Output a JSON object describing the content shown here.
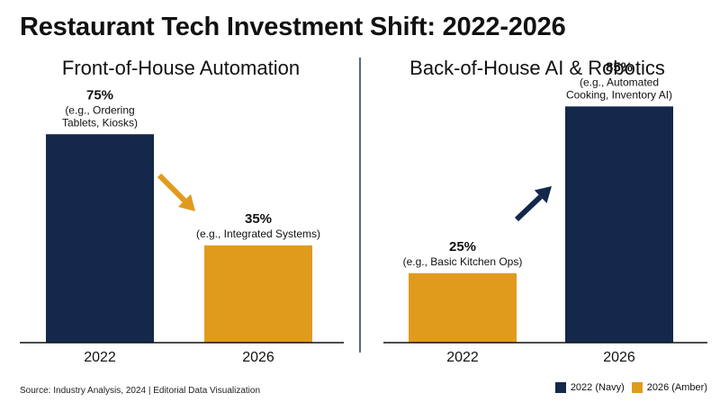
{
  "title": "Restaurant Tech Investment Shift: 2022-2026",
  "source": "Source: Industry Analysis, 2024 | Editorial Data Visualization",
  "colors": {
    "navy": "#14284b",
    "amber": "#e09b1d",
    "divider": "#1f3557"
  },
  "legend": [
    {
      "label": "2022 (Navy)",
      "color": "#14284b"
    },
    {
      "label": "2026 (Amber)",
      "color": "#e09b1d"
    }
  ],
  "chart_data": [
    {
      "type": "bar",
      "title": "Front-of-House Automation",
      "categories": [
        "2022",
        "2026"
      ],
      "values": [
        75,
        35
      ],
      "value_labels": [
        "75%",
        "35%"
      ],
      "notes": [
        [
          "(e.g., Ordering",
          "Tablets, Kiosks)"
        ],
        [
          "(e.g., Integrated Systems)"
        ]
      ],
      "bar_colors": [
        "#14284b",
        "#e09b1d"
      ],
      "trend": "down",
      "arrow_color": "#e09b1d",
      "ylim": [
        0,
        100
      ],
      "xlabel": "",
      "ylabel": ""
    },
    {
      "type": "bar",
      "title": "Back-of-House AI & Robotics",
      "categories": [
        "2022",
        "2026"
      ],
      "values": [
        25,
        85
      ],
      "value_labels": [
        "25%",
        "85%"
      ],
      "notes": [
        [
          "(e.g., Basic Kitchen Ops)"
        ],
        [
          "(e.g., Automated",
          "Cooking, Inventory AI)"
        ]
      ],
      "bar_colors": [
        "#e09b1d",
        "#14284b"
      ],
      "trend": "up",
      "arrow_color": "#14284b",
      "ylim": [
        0,
        100
      ],
      "xlabel": "",
      "ylabel": ""
    }
  ]
}
